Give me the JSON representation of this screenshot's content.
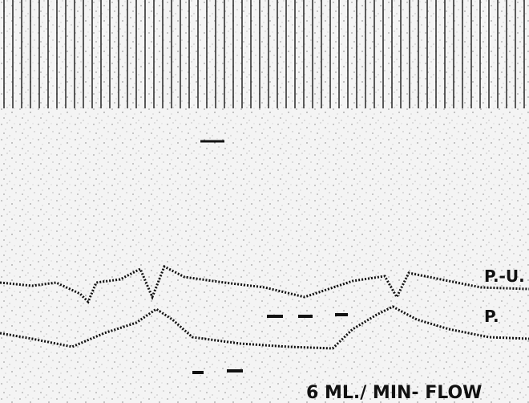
{
  "labels": {
    "upper_trace": "P.-U.",
    "lower_trace": "P.",
    "caption": "6 ML./ MIN- FLOW"
  }
}
